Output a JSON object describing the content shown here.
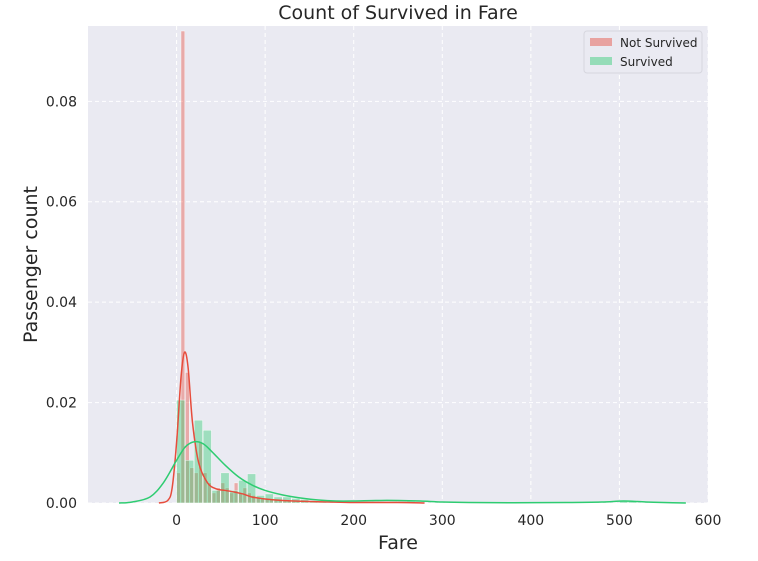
{
  "chart_data": {
    "type": "histogram",
    "title": "Count of Survived in Fare",
    "xlabel": "Fare",
    "ylabel": "Passenger count",
    "xlim": [
      -100,
      600
    ],
    "ylim": [
      0,
      0.095
    ],
    "xticks": [
      0,
      100,
      200,
      300,
      400,
      500,
      600
    ],
    "yticks": [
      0,
      0.02,
      0.04,
      0.06,
      0.08
    ],
    "ytick_labels": [
      "0.00",
      "0.02",
      "0.04",
      "0.06",
      "0.08"
    ],
    "grid": true,
    "legend_position": "top-right",
    "series": [
      {
        "name": "Not Survived",
        "color": "#e74c3c",
        "bins": [
          {
            "x0": 0,
            "x1": 5,
            "value": 0.006
          },
          {
            "x0": 5,
            "x1": 10,
            "value": 0.094
          },
          {
            "x0": 10,
            "x1": 15,
            "value": 0.026
          },
          {
            "x0": 15,
            "x1": 20,
            "value": 0.007
          },
          {
            "x0": 20,
            "x1": 25,
            "value": 0.006
          },
          {
            "x0": 25,
            "x1": 30,
            "value": 0.012
          },
          {
            "x0": 30,
            "x1": 35,
            "value": 0.006
          },
          {
            "x0": 35,
            "x1": 40,
            "value": 0.004
          },
          {
            "x0": 40,
            "x1": 45,
            "value": 0.002
          },
          {
            "x0": 45,
            "x1": 50,
            "value": 0.003
          },
          {
            "x0": 50,
            "x1": 55,
            "value": 0.004
          },
          {
            "x0": 55,
            "x1": 60,
            "value": 0.003
          },
          {
            "x0": 60,
            "x1": 65,
            "value": 0.002
          },
          {
            "x0": 65,
            "x1": 70,
            "value": 0.004
          },
          {
            "x0": 70,
            "x1": 75,
            "value": 0.002
          },
          {
            "x0": 75,
            "x1": 80,
            "value": 0.003
          },
          {
            "x0": 80,
            "x1": 85,
            "value": 0.002
          },
          {
            "x0": 85,
            "x1": 90,
            "value": 0.0015
          },
          {
            "x0": 90,
            "x1": 95,
            "value": 0.001
          },
          {
            "x0": 95,
            "x1": 100,
            "value": 0.001
          },
          {
            "x0": 100,
            "x1": 105,
            "value": 0.0008
          },
          {
            "x0": 105,
            "x1": 110,
            "value": 0.0008
          },
          {
            "x0": 110,
            "x1": 115,
            "value": 0.0006
          },
          {
            "x0": 115,
            "x1": 120,
            "value": 0.0006
          },
          {
            "x0": 120,
            "x1": 125,
            "value": 0.0004
          },
          {
            "x0": 125,
            "x1": 130,
            "value": 0.0004
          },
          {
            "x0": 130,
            "x1": 135,
            "value": 0.0003
          },
          {
            "x0": 135,
            "x1": 140,
            "value": 0.0003
          },
          {
            "x0": 140,
            "x1": 145,
            "value": 0.0002
          },
          {
            "x0": 145,
            "x1": 150,
            "value": 0.0002
          }
        ],
        "kde": [
          [
            -20,
            0
          ],
          [
            -10,
            0.0005
          ],
          [
            -5,
            0.003
          ],
          [
            0,
            0.012
          ],
          [
            5,
            0.025
          ],
          [
            9,
            0.03
          ],
          [
            13,
            0.027
          ],
          [
            18,
            0.016
          ],
          [
            25,
            0.008
          ],
          [
            35,
            0.004
          ],
          [
            45,
            0.0028
          ],
          [
            55,
            0.0025
          ],
          [
            65,
            0.0022
          ],
          [
            75,
            0.0018
          ],
          [
            85,
            0.0012
          ],
          [
            100,
            0.0008
          ],
          [
            120,
            0.0005
          ],
          [
            150,
            0.0003
          ],
          [
            200,
            0.0001
          ],
          [
            250,
            0.0001
          ],
          [
            280,
            0
          ]
        ]
      },
      {
        "name": "Survived",
        "color": "#2ecc71",
        "bins": [
          {
            "x0": 0,
            "x1": 10,
            "value": 0.0205
          },
          {
            "x0": 10,
            "x1": 20,
            "value": 0.0085
          },
          {
            "x0": 20,
            "x1": 30,
            "value": 0.0165
          },
          {
            "x0": 30,
            "x1": 40,
            "value": 0.0145
          },
          {
            "x0": 40,
            "x1": 50,
            "value": 0.0025
          },
          {
            "x0": 50,
            "x1": 60,
            "value": 0.006
          },
          {
            "x0": 60,
            "x1": 70,
            "value": 0.0025
          },
          {
            "x0": 70,
            "x1": 80,
            "value": 0.0045
          },
          {
            "x0": 80,
            "x1": 90,
            "value": 0.0058
          },
          {
            "x0": 90,
            "x1": 100,
            "value": 0.0015
          },
          {
            "x0": 100,
            "x1": 110,
            "value": 0.0018
          },
          {
            "x0": 110,
            "x1": 120,
            "value": 0.0012
          },
          {
            "x0": 120,
            "x1": 130,
            "value": 0.0012
          },
          {
            "x0": 130,
            "x1": 140,
            "value": 0.0009
          },
          {
            "x0": 140,
            "x1": 150,
            "value": 0.0007
          },
          {
            "x0": 150,
            "x1": 160,
            "value": 0.0003
          },
          {
            "x0": 160,
            "x1": 170,
            "value": 0.0002
          },
          {
            "x0": 210,
            "x1": 220,
            "value": 0.0002
          },
          {
            "x0": 220,
            "x1": 230,
            "value": 0.0003
          },
          {
            "x0": 240,
            "x1": 250,
            "value": 0.0003
          },
          {
            "x0": 260,
            "x1": 270,
            "value": 0.0003
          },
          {
            "x0": 500,
            "x1": 510,
            "value": 0.0004
          },
          {
            "x0": 510,
            "x1": 520,
            "value": 0.0003
          }
        ],
        "kde": [
          [
            -65,
            0
          ],
          [
            -50,
            0.0002
          ],
          [
            -30,
            0.0012
          ],
          [
            -15,
            0.004
          ],
          [
            0,
            0.0085
          ],
          [
            10,
            0.0112
          ],
          [
            20,
            0.0122
          ],
          [
            30,
            0.0118
          ],
          [
            40,
            0.0102
          ],
          [
            55,
            0.0075
          ],
          [
            70,
            0.0052
          ],
          [
            85,
            0.0036
          ],
          [
            100,
            0.0025
          ],
          [
            120,
            0.0016
          ],
          [
            140,
            0.001
          ],
          [
            160,
            0.0006
          ],
          [
            180,
            0.0004
          ],
          [
            200,
            0.0004
          ],
          [
            225,
            0.0005
          ],
          [
            250,
            0.0005
          ],
          [
            275,
            0.0004
          ],
          [
            300,
            0.0002
          ],
          [
            330,
            0.0001
          ],
          [
            380,
            5e-05
          ],
          [
            440,
            0.0001
          ],
          [
            480,
            0.0002
          ],
          [
            505,
            0.0004
          ],
          [
            530,
            0.0002
          ],
          [
            555,
            8e-05
          ],
          [
            575,
            0
          ]
        ]
      }
    ]
  }
}
